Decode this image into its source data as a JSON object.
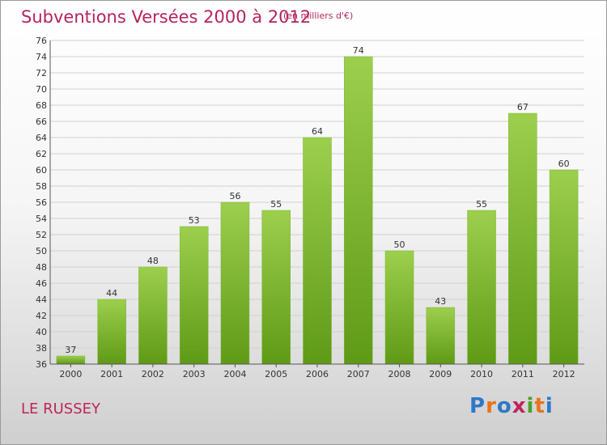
{
  "header": {
    "title": "Subventions Versées 2000 à 2012",
    "unit_note": "(en milliers d'€)"
  },
  "footer": {
    "commune": "LE RUSSEY",
    "logo_text": "Proxiti"
  },
  "colors": {
    "title": "#b5245e",
    "bar_light": "#9ccf4d",
    "bar_dark": "#5f9a17",
    "grid": "#d0d0d0"
  },
  "chart_data": {
    "type": "bar",
    "categories": [
      "2000",
      "2001",
      "2002",
      "2003",
      "2004",
      "2005",
      "2006",
      "2007",
      "2008",
      "2009",
      "2010",
      "2011",
      "2012"
    ],
    "values": [
      37,
      44,
      48,
      53,
      56,
      55,
      64,
      74,
      50,
      43,
      55,
      67,
      60
    ],
    "title": "Subventions Versées 2000 à 2012",
    "ylim": [
      36,
      76
    ],
    "yticks": [
      36,
      38,
      40,
      42,
      44,
      46,
      48,
      50,
      52,
      54,
      56,
      58,
      60,
      62,
      64,
      66,
      68,
      70,
      72,
      74,
      76
    ],
    "grid": true,
    "legend": "none"
  }
}
